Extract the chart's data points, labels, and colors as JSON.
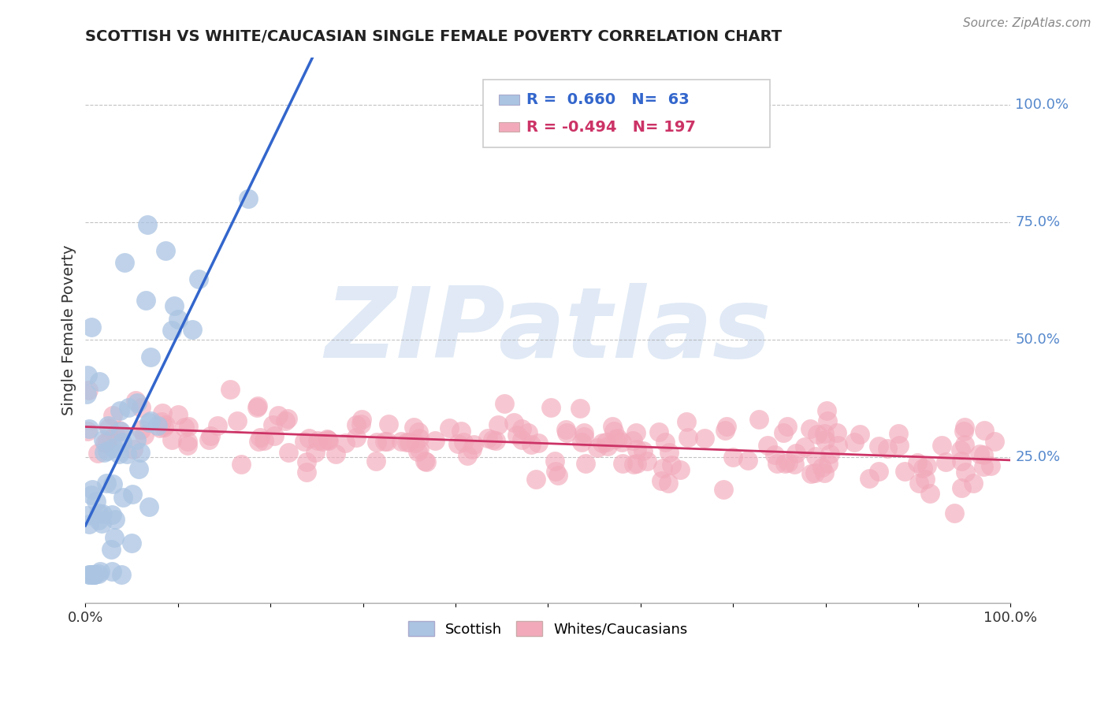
{
  "title": "SCOTTISH VS WHITE/CAUCASIAN SINGLE FEMALE POVERTY CORRELATION CHART",
  "source": "Source: ZipAtlas.com",
  "ylabel": "Single Female Poverty",
  "blue_R": 0.66,
  "blue_N": 63,
  "pink_R": -0.494,
  "pink_N": 197,
  "blue_color": "#aac4e2",
  "pink_color": "#f2aabb",
  "blue_line_color": "#3366cc",
  "pink_line_color": "#cc3366",
  "watermark": "ZIPatlas",
  "legend_blue_label": "Scottish",
  "legend_pink_label": "Whites/Caucasians",
  "right_label_color": "#5588cc",
  "title_color": "#222222",
  "source_color": "#888888"
}
